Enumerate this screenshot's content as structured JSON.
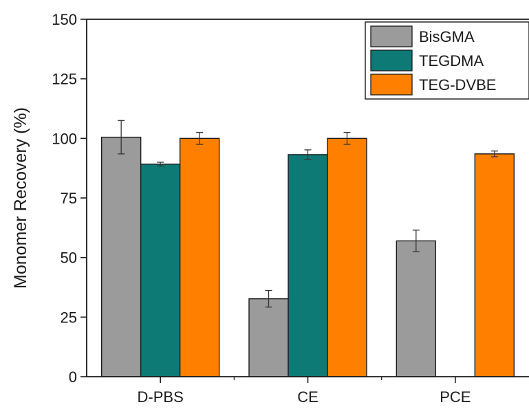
{
  "chart_data": {
    "type": "bar",
    "title": "",
    "xlabel": "",
    "ylabel": "Monomer Recovery (%)",
    "ylim": [
      0,
      150
    ],
    "yticks": [
      0,
      25,
      50,
      75,
      100,
      125,
      150
    ],
    "categories": [
      "D-PBS",
      "CE",
      "PCE"
    ],
    "series": [
      {
        "name": "BisGMA",
        "color": "#9b9b9b",
        "values": [
          100.5,
          32.7,
          57.0
        ],
        "errors": [
          7.0,
          3.5,
          4.5
        ]
      },
      {
        "name": "TEGDMA",
        "color": "#0e7a76",
        "values": [
          89.2,
          93.2,
          null
        ],
        "errors": [
          0.8,
          2.0,
          null
        ]
      },
      {
        "name": "TEG-DVBE",
        "color": "#ff8000",
        "values": [
          100.0,
          100.0,
          93.5
        ],
        "errors": [
          2.5,
          2.5,
          1.2
        ]
      }
    ],
    "legend_position": "top-right",
    "grid": false
  }
}
